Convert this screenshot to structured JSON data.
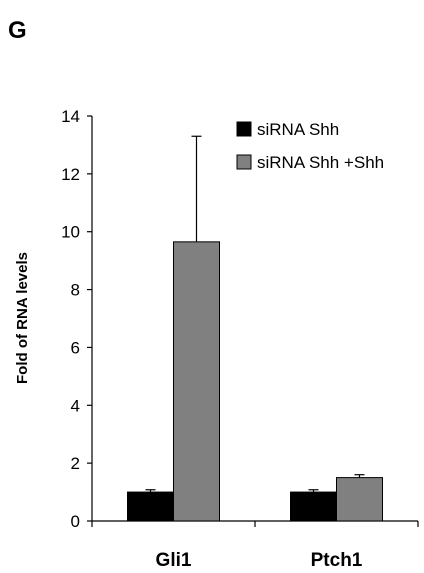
{
  "panel_label": "G",
  "chart_data": {
    "type": "bar",
    "title": "",
    "categories": [
      "Gli1",
      "Ptch1"
    ],
    "xlabel": "",
    "ylabel": "Fold of RNA levels",
    "ylim": [
      0,
      14
    ],
    "yticks": [
      0,
      2,
      4,
      6,
      8,
      10,
      12,
      14
    ],
    "grid": false,
    "legend_position": "top-right",
    "series": [
      {
        "name": "siRNA Shh",
        "color": "#000000",
        "values": [
          1.0,
          1.0
        ],
        "errors": [
          0.08,
          0.08
        ]
      },
      {
        "name": "siRNA Shh +Shh",
        "color": "#808080",
        "values": [
          9.65,
          1.5
        ],
        "errors": [
          3.65,
          0.1
        ]
      }
    ]
  }
}
